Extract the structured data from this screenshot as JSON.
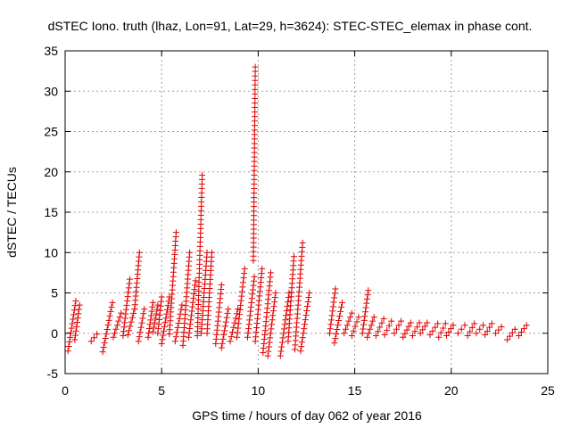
{
  "chart_data": {
    "type": "scatter",
    "title": "dSTEC Iono. truth (lhaz, Lon=91, Lat=29, h=3624): STEC-STEC_elemax in phase cont.",
    "xlabel": "GPS time / hours of day 062 of year 2016",
    "ylabel": "dSTEC  / TECUs",
    "xlim": [
      0,
      25
    ],
    "ylim": [
      -5,
      35
    ],
    "x_ticks": [
      0,
      5,
      10,
      15,
      20,
      25
    ],
    "y_ticks": [
      -5,
      0,
      5,
      10,
      15,
      20,
      25,
      30,
      35
    ],
    "grid": true,
    "marker": "+",
    "color": "#e00000",
    "series": [
      {
        "x": [
          0.15,
          0.55
        ],
        "y": [
          -2.2,
          4.0
        ]
      },
      {
        "x": [
          0.5,
          0.75
        ],
        "y": [
          -0.8,
          3.5
        ]
      },
      {
        "x": [
          1.35,
          1.65
        ],
        "y": [
          -1.0,
          -0.1
        ]
      },
      {
        "x": [
          1.95,
          2.45
        ],
        "y": [
          -2.3,
          3.8
        ]
      },
      {
        "x": [
          2.5,
          2.9
        ],
        "y": [
          -0.5,
          2.5
        ]
      },
      {
        "x": [
          3.0,
          3.35
        ],
        "y": [
          -0.3,
          6.7
        ]
      },
      {
        "x": [
          3.25,
          3.6
        ],
        "y": [
          -0.2,
          3.0
        ]
      },
      {
        "x": [
          3.6,
          3.85
        ],
        "y": [
          3.0,
          10.0
        ]
      },
      {
        "x": [
          3.8,
          4.1
        ],
        "y": [
          -1.0,
          3.0
        ]
      },
      {
        "x": [
          4.3,
          4.55
        ],
        "y": [
          -0.5,
          3.8
        ]
      },
      {
        "x": [
          4.55,
          4.8
        ],
        "y": [
          0.2,
          3.5
        ]
      },
      {
        "x": [
          4.8,
          5.0
        ],
        "y": [
          0.0,
          4.5
        ]
      },
      {
        "x": [
          5.0,
          5.4
        ],
        "y": [
          -1.3,
          4.5
        ]
      },
      {
        "x": [
          5.4,
          5.75
        ],
        "y": [
          -0.1,
          12.5
        ]
      },
      {
        "x": [
          5.7,
          6.05
        ],
        "y": [
          -1.0,
          3.5
        ]
      },
      {
        "x": [
          6.1,
          6.45
        ],
        "y": [
          -1.5,
          10.0
        ]
      },
      {
        "x": [
          6.4,
          6.75
        ],
        "y": [
          -0.5,
          6.5
        ]
      },
      {
        "x": [
          6.85,
          7.1
        ],
        "y": [
          -0.3,
          19.6
        ]
      },
      {
        "x": [
          7.05,
          7.35
        ],
        "y": [
          0.0,
          10.0
        ]
      },
      {
        "x": [
          7.35,
          7.6
        ],
        "y": [
          0.0,
          10.0
        ]
      },
      {
        "x": [
          7.8,
          8.1
        ],
        "y": [
          -1.3,
          6.0
        ]
      },
      {
        "x": [
          8.1,
          8.45
        ],
        "y": [
          -1.8,
          3.0
        ]
      },
      {
        "x": [
          8.55,
          8.95
        ],
        "y": [
          -1.0,
          3.0
        ]
      },
      {
        "x": [
          8.9,
          9.3
        ],
        "y": [
          -0.5,
          8.0
        ]
      },
      {
        "x": [
          9.45,
          9.8
        ],
        "y": [
          -0.5,
          7.0
        ]
      },
      {
        "x": [
          9.75,
          9.85
        ],
        "y": [
          9.0,
          33.0
        ]
      },
      {
        "x": [
          9.85,
          10.2
        ],
        "y": [
          -1.0,
          8.0
        ]
      },
      {
        "x": [
          10.25,
          10.65
        ],
        "y": [
          -2.4,
          7.5
        ]
      },
      {
        "x": [
          10.5,
          10.9
        ],
        "y": [
          -2.8,
          5.0
        ]
      },
      {
        "x": [
          11.15,
          11.6
        ],
        "y": [
          -2.8,
          5.0
        ]
      },
      {
        "x": [
          11.55,
          11.85
        ],
        "y": [
          -1.0,
          9.5
        ]
      },
      {
        "x": [
          11.9,
          12.3
        ],
        "y": [
          -2.0,
          11.2
        ]
      },
      {
        "x": [
          12.2,
          12.65
        ],
        "y": [
          -2.2,
          5.0
        ]
      },
      {
        "x": [
          13.7,
          14.0
        ],
        "y": [
          0.0,
          5.5
        ]
      },
      {
        "x": [
          13.95,
          14.35
        ],
        "y": [
          -1.2,
          3.8
        ]
      },
      {
        "x": [
          14.45,
          14.85
        ],
        "y": [
          0.0,
          2.5
        ]
      },
      {
        "x": [
          14.85,
          15.2
        ],
        "y": [
          -0.3,
          2.0
        ]
      },
      {
        "x": [
          15.4,
          15.7
        ],
        "y": [
          0.0,
          5.3
        ]
      },
      {
        "x": [
          15.65,
          16.0
        ],
        "y": [
          -0.5,
          2.0
        ]
      },
      {
        "x": [
          16.1,
          16.5
        ],
        "y": [
          -0.3,
          1.8
        ]
      },
      {
        "x": [
          16.55,
          16.9
        ],
        "y": [
          -0.2,
          1.5
        ]
      },
      {
        "x": [
          17.05,
          17.4
        ],
        "y": [
          0.0,
          1.5
        ]
      },
      {
        "x": [
          17.5,
          17.9
        ],
        "y": [
          -0.5,
          1.3
        ]
      },
      {
        "x": [
          18.0,
          18.35
        ],
        "y": [
          -0.3,
          1.3
        ]
      },
      {
        "x": [
          18.4,
          18.75
        ],
        "y": [
          0.0,
          1.3
        ]
      },
      {
        "x": [
          18.9,
          19.3
        ],
        "y": [
          -0.2,
          1.2
        ]
      },
      {
        "x": [
          19.35,
          19.7
        ],
        "y": [
          -0.5,
          1.2
        ]
      },
      {
        "x": [
          19.75,
          20.1
        ],
        "y": [
          -0.3,
          1.0
        ]
      },
      {
        "x": [
          20.35,
          20.7
        ],
        "y": [
          0.0,
          1.0
        ]
      },
      {
        "x": [
          20.85,
          21.2
        ],
        "y": [
          -0.3,
          1.2
        ]
      },
      {
        "x": [
          21.3,
          21.65
        ],
        "y": [
          0.0,
          1.0
        ]
      },
      {
        "x": [
          21.75,
          22.1
        ],
        "y": [
          -0.2,
          1.2
        ]
      },
      {
        "x": [
          22.3,
          22.6
        ],
        "y": [
          0.0,
          0.8
        ]
      },
      {
        "x": [
          22.9,
          23.3
        ],
        "y": [
          -0.8,
          0.5
        ]
      },
      {
        "x": [
          23.5,
          23.9
        ],
        "y": [
          -0.3,
          1.0
        ]
      }
    ]
  }
}
